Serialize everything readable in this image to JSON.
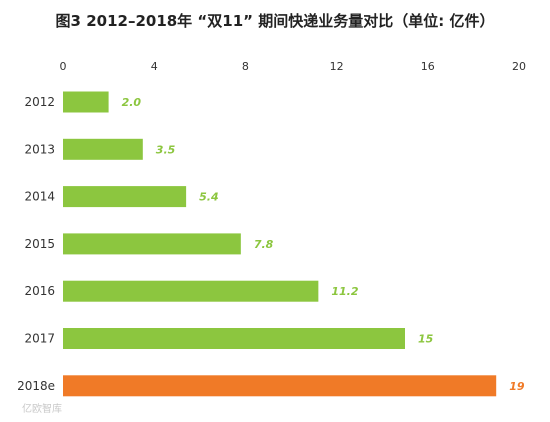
{
  "chart_data": {
    "type": "bar",
    "orientation": "horizontal",
    "title": "图3  2012–2018年 “双11” 期间快递业务量对比（单位: 亿件）",
    "categories": [
      "2012",
      "2013",
      "2014",
      "2015",
      "2016",
      "2017",
      "2018e"
    ],
    "values": [
      2.0,
      3.5,
      5.4,
      7.8,
      11.2,
      15,
      19
    ],
    "value_labels": [
      "2.0",
      "3.5",
      "5.4",
      "7.8",
      "11.2",
      "15",
      "19"
    ],
    "xlim": [
      0,
      20
    ],
    "x_ticks": [
      0,
      4,
      8,
      12,
      16,
      20
    ],
    "x_axis_position": "top",
    "grid": false,
    "colors": {
      "actual": "#8cc63f",
      "estimate": "#f07a27",
      "actual_label": "#8cc63f",
      "estimate_label": "#f07a27"
    },
    "highlight_index": 6
  },
  "watermark": "亿欧智库"
}
